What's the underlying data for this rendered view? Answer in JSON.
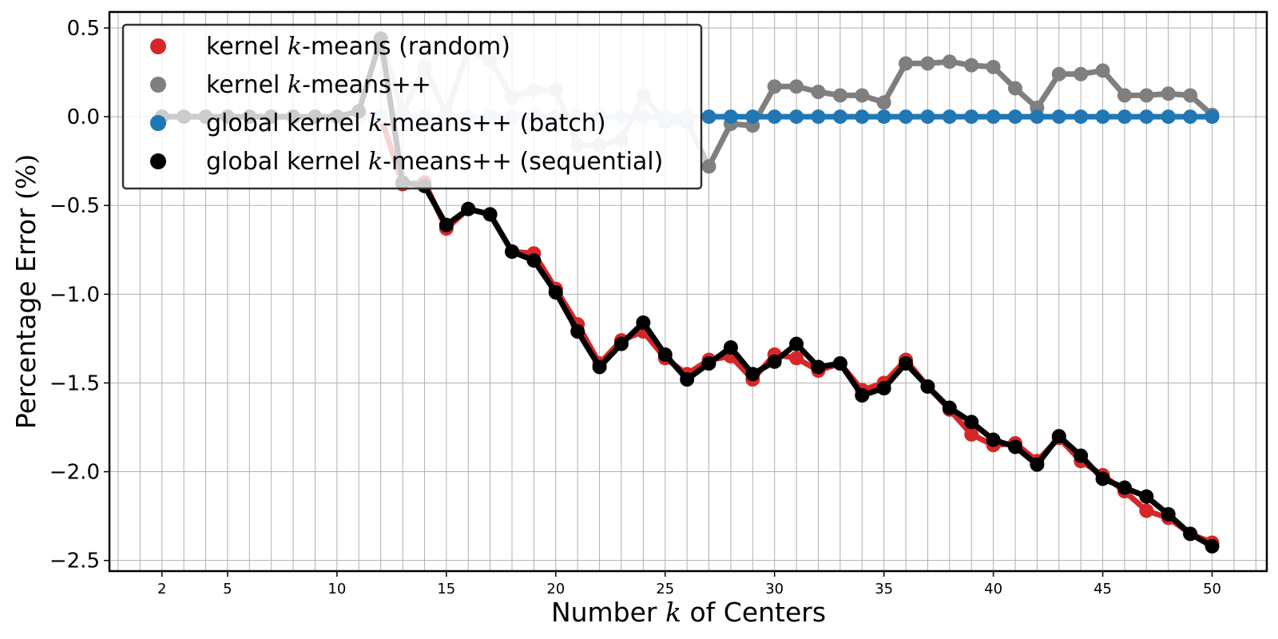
{
  "chart_data": {
    "type": "line",
    "title": "",
    "xlabel": "Number k of Centers",
    "ylabel": "Percentage Error (%)",
    "xlim": [
      -0.4,
      52.5
    ],
    "ylim": [
      -2.56,
      0.59
    ],
    "xticks": [
      2,
      5,
      10,
      15,
      20,
      25,
      30,
      35,
      40,
      45,
      50
    ],
    "yticks": [
      0.5,
      0.0,
      -0.5,
      -1.0,
      -1.5,
      -2.0,
      -2.5
    ],
    "ytick_labels": [
      "0.5",
      "0.0",
      "−0.5",
      "−1.0",
      "−1.5",
      "−2.0",
      "−2.5"
    ],
    "grid": true,
    "legend_position": "top-left",
    "split_k": 27,
    "x": [
      2,
      3,
      4,
      5,
      6,
      7,
      8,
      9,
      10,
      11,
      12,
      13,
      14,
      15,
      16,
      17,
      18,
      19,
      20,
      21,
      22,
      23,
      24,
      25,
      26,
      27,
      28,
      29,
      30,
      31,
      32,
      33,
      34,
      35,
      36,
      37,
      38,
      39,
      40,
      41,
      42,
      43,
      44,
      45,
      46,
      47,
      48,
      49,
      50
    ],
    "series": [
      {
        "name": "kernel k-means (random)",
        "color": "#d62728",
        "faded_color": "#f2b8b8",
        "values": [
          0,
          0,
          0,
          0,
          0,
          0,
          0,
          0,
          0,
          0,
          0,
          -0.38,
          -0.37,
          -0.63,
          -0.52,
          -0.55,
          -0.76,
          -0.77,
          -0.97,
          -1.17,
          -1.39,
          -1.26,
          -1.21,
          -1.36,
          -1.45,
          -1.37,
          -1.35,
          -1.48,
          -1.34,
          -1.36,
          -1.43,
          -1.39,
          -1.54,
          -1.5,
          -1.37,
          -1.52,
          -1.65,
          -1.79,
          -1.85,
          -1.84,
          -1.94,
          -1.81,
          -1.94,
          -2.02,
          -2.11,
          -2.22,
          -2.26,
          -2.35,
          -2.4
        ]
      },
      {
        "name": "kernel k-means++",
        "color": "#7f7f7f",
        "faded_color": "#cccccc",
        "values": [
          0,
          0,
          0,
          0,
          0,
          0,
          0,
          0,
          0,
          0.03,
          0.44,
          0.02,
          0.28,
          0.02,
          0.38,
          0.32,
          0.11,
          0.15,
          0.15,
          -0.16,
          -0.16,
          -0.13,
          0.12,
          -0.03,
          -0.03,
          -0.28,
          -0.04,
          -0.05,
          0.17,
          0.17,
          0.14,
          0.12,
          0.12,
          0.08,
          0.3,
          0.3,
          0.31,
          0.29,
          0.28,
          0.16,
          0.05,
          0.24,
          0.24,
          0.26,
          0.12,
          0.12,
          0.13,
          0.12,
          0.01
        ]
      },
      {
        "name": "global kernel k-means++ (batch)",
        "color": "#1f77b4",
        "faded_color": "#c6dbef",
        "values": [
          0,
          0,
          0,
          0,
          0,
          0,
          0,
          0,
          0,
          0,
          0,
          0,
          0,
          0,
          0,
          0,
          0,
          0,
          0,
          0,
          0,
          0,
          0,
          0,
          0,
          0,
          0,
          0,
          0,
          0,
          0,
          0,
          0,
          0,
          0,
          0,
          0,
          0,
          0,
          0,
          0,
          0,
          0,
          0,
          0,
          0,
          0,
          0,
          0
        ]
      },
      {
        "name": "global kernel k-means++ (sequential)",
        "color": "#000000",
        "faded_color": "#cccccc",
        "values": [
          0,
          0,
          0,
          0,
          0,
          0,
          0,
          0,
          0,
          0.03,
          0.44,
          -0.37,
          -0.39,
          -0.61,
          -0.52,
          -0.55,
          -0.76,
          -0.81,
          -0.99,
          -1.21,
          -1.41,
          -1.28,
          -1.16,
          -1.34,
          -1.48,
          -1.39,
          -1.3,
          -1.45,
          -1.38,
          -1.28,
          -1.41,
          -1.39,
          -1.57,
          -1.53,
          -1.39,
          -1.52,
          -1.64,
          -1.72,
          -1.82,
          -1.86,
          -1.96,
          -1.8,
          -1.91,
          -2.04,
          -2.09,
          -2.14,
          -2.24,
          -2.35,
          -2.42
        ]
      }
    ]
  },
  "legend": {
    "items": [
      {
        "prefix": "kernel ",
        "k": "k",
        "suffix": "-means (random)",
        "color": "#d62728"
      },
      {
        "prefix": "kernel ",
        "k": "k",
        "suffix": "-means++",
        "color": "#7f7f7f"
      },
      {
        "prefix": "global kernel ",
        "k": "k",
        "suffix": "-means++ (batch)",
        "color": "#1f77b4"
      },
      {
        "prefix": "global kernel ",
        "k": "k",
        "suffix": "-means++ (sequential)",
        "color": "#000000"
      }
    ]
  },
  "axis_text": {
    "xlabel_prefix": "Number ",
    "xlabel_k": "k",
    "xlabel_suffix": " of Centers",
    "ylabel_main": "Percentage Error ",
    "ylabel_unit": "(%)"
  }
}
